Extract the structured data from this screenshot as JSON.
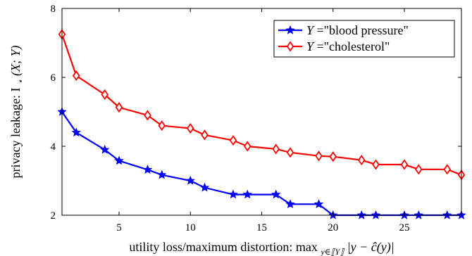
{
  "chart_data": {
    "type": "line",
    "title": "",
    "xlabel": "utility loss/maximum distortion: max",
    "xlabel_sub": "y∈⟦Y⟧",
    "xlabel_expr": " |y − ĉ(y)|",
    "ylabel": "privacy leakage: I",
    "ylabel_sub": "⋆",
    "ylabel_expr": "(X; Y)",
    "xlim": [
      1,
      29
    ],
    "ylim": [
      2,
      8
    ],
    "xticks": [
      5,
      10,
      15,
      20,
      25
    ],
    "yticks": [
      2,
      4,
      6,
      8
    ],
    "grid": false,
    "legend_position": "top-right",
    "series": [
      {
        "name": "Y =\"blood pressure\"",
        "legend_var": "Y",
        "legend_rest": " =\"blood pressure\"",
        "color": "#0000ff",
        "marker": "star",
        "x": [
          1,
          2,
          4,
          5,
          7,
          8,
          10,
          11,
          13,
          14,
          16,
          17,
          19,
          20,
          22,
          23,
          25,
          26,
          28,
          29
        ],
        "y": [
          5.0,
          4.4,
          3.9,
          3.58,
          3.32,
          3.17,
          3.0,
          2.8,
          2.6,
          2.6,
          2.6,
          2.32,
          2.32,
          2.0,
          2.0,
          2.0,
          2.0,
          2.0,
          2.0,
          2.0
        ]
      },
      {
        "name": "Y =\"cholesterol\"",
        "legend_var": "Y",
        "legend_rest": " =\"cholesterol\"",
        "color": "#ff0000",
        "marker": "diamond",
        "x": [
          1,
          2,
          4,
          5,
          7,
          8,
          10,
          11,
          13,
          14,
          16,
          17,
          19,
          20,
          22,
          23,
          25,
          26,
          28,
          29
        ],
        "y": [
          7.25,
          6.05,
          5.5,
          5.13,
          4.9,
          4.6,
          4.52,
          4.33,
          4.17,
          4.0,
          3.92,
          3.82,
          3.72,
          3.7,
          3.6,
          3.47,
          3.47,
          3.33,
          3.33,
          3.17
        ]
      }
    ]
  }
}
